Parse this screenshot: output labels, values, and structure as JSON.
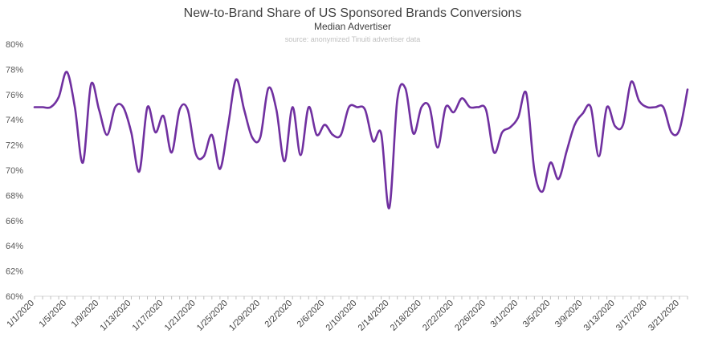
{
  "chart_data": {
    "type": "line",
    "title": "New-to-Brand Share of US Sponsored Brands Conversions",
    "subtitle": "Median Advertiser",
    "source": "source: anonymized Tinuiti advertiser data",
    "xlabel": "",
    "ylabel": "",
    "ylim": [
      60,
      80
    ],
    "yticks": [
      60,
      62,
      64,
      66,
      68,
      70,
      72,
      74,
      76,
      78,
      80
    ],
    "ytick_labels": [
      "60%",
      "62%",
      "64%",
      "66%",
      "68%",
      "70%",
      "72%",
      "74%",
      "76%",
      "78%",
      "80%"
    ],
    "grid": false,
    "legend": "none",
    "line_color": "#7030a0",
    "x_tick_labels": [
      "1/1/2020",
      "1/5/2020",
      "1/9/2020",
      "1/13/2020",
      "1/17/2020",
      "1/21/2020",
      "1/25/2020",
      "1/29/2020",
      "2/2/2020",
      "2/6/2020",
      "2/10/2020",
      "2/14/2020",
      "2/18/2020",
      "2/22/2020",
      "2/26/2020",
      "3/1/2020",
      "3/5/2020",
      "3/9/2020",
      "3/13/2020",
      "3/17/2020",
      "3/21/2020"
    ],
    "x": [
      "1/1/2020",
      "1/2/2020",
      "1/3/2020",
      "1/4/2020",
      "1/5/2020",
      "1/6/2020",
      "1/7/2020",
      "1/8/2020",
      "1/9/2020",
      "1/10/2020",
      "1/11/2020",
      "1/12/2020",
      "1/13/2020",
      "1/14/2020",
      "1/15/2020",
      "1/16/2020",
      "1/17/2020",
      "1/18/2020",
      "1/19/2020",
      "1/20/2020",
      "1/21/2020",
      "1/22/2020",
      "1/23/2020",
      "1/24/2020",
      "1/25/2020",
      "1/26/2020",
      "1/27/2020",
      "1/28/2020",
      "1/29/2020",
      "1/30/2020",
      "1/31/2020",
      "2/1/2020",
      "2/2/2020",
      "2/3/2020",
      "2/4/2020",
      "2/5/2020",
      "2/6/2020",
      "2/7/2020",
      "2/8/2020",
      "2/9/2020",
      "2/10/2020",
      "2/11/2020",
      "2/12/2020",
      "2/13/2020",
      "2/14/2020",
      "2/15/2020",
      "2/16/2020",
      "2/17/2020",
      "2/18/2020",
      "2/19/2020",
      "2/20/2020",
      "2/21/2020",
      "2/22/2020",
      "2/23/2020",
      "2/24/2020",
      "2/25/2020",
      "2/26/2020",
      "2/27/2020",
      "2/28/2020",
      "2/29/2020",
      "3/1/2020",
      "3/2/2020",
      "3/3/2020",
      "3/4/2020",
      "3/5/2020",
      "3/6/2020",
      "3/7/2020",
      "3/8/2020",
      "3/9/2020",
      "3/10/2020",
      "3/11/2020",
      "3/12/2020",
      "3/13/2020",
      "3/14/2020",
      "3/15/2020",
      "3/16/2020",
      "3/17/2020",
      "3/18/2020",
      "3/19/2020",
      "3/20/2020",
      "3/21/2020",
      "3/22/2020"
    ],
    "series": [
      {
        "values": [
          75.0,
          75.0,
          75.0,
          75.8,
          77.8,
          75.0,
          70.6,
          76.8,
          74.8,
          72.8,
          75.0,
          75.0,
          73.0,
          69.9,
          75.0,
          73.0,
          74.3,
          71.4,
          74.8,
          74.8,
          71.3,
          71.1,
          72.8,
          70.1,
          73.5,
          77.2,
          74.8,
          72.6,
          72.6,
          76.5,
          74.8,
          70.7,
          75.0,
          71.2,
          75.0,
          72.8,
          73.6,
          72.8,
          72.8,
          75.0,
          75.0,
          74.8,
          72.3,
          72.9,
          67.0,
          75.6,
          76.5,
          72.9,
          75.0,
          75.0,
          71.8,
          75.0,
          74.6,
          75.7,
          75.0,
          75.0,
          74.8,
          71.4,
          73.0,
          73.4,
          74.2,
          76.1,
          70.0,
          68.3,
          70.6,
          69.3,
          71.5,
          73.6,
          74.5,
          75.0,
          71.1,
          75.0,
          73.5,
          73.6,
          77.0,
          75.5,
          75.0,
          75.0,
          75.0,
          73.0,
          73.2,
          76.4
        ]
      }
    ]
  }
}
